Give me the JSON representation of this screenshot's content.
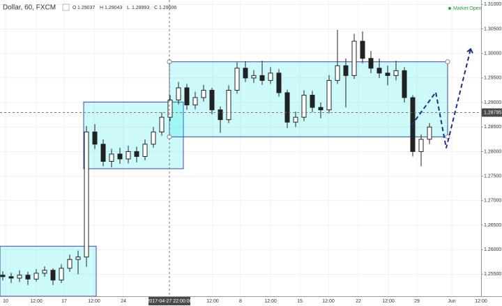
{
  "header": {
    "symbol": "Dollar, 60, FXCM",
    "ohlc_labels": [
      "O",
      "H",
      "L",
      "C"
    ],
    "ohlc_values": [
      "1.29037",
      "1.29043",
      "1.28993",
      "1.29006"
    ],
    "status": "Market Open"
  },
  "chart_data": {
    "type": "candlestick",
    "x": [
      1,
      4,
      7,
      10,
      13,
      16,
      19,
      22,
      25,
      28,
      31,
      34,
      37,
      40,
      43,
      46,
      49,
      52,
      55,
      58,
      61,
      64,
      67,
      70,
      73,
      76,
      79,
      82,
      85,
      88,
      91,
      94,
      97,
      100,
      103,
      106,
      109,
      112,
      115,
      118,
      121,
      124,
      127,
      130,
      133,
      136,
      139,
      142,
      145,
      148,
      151,
      154
    ],
    "open": [
      1.2548,
      1.2545,
      1.2542,
      1.2548,
      1.254,
      1.2552,
      1.2558,
      1.2538,
      1.2562,
      1.258,
      1.2585,
      1.284,
      1.2815,
      1.278,
      1.2795,
      1.2785,
      1.28,
      1.279,
      1.2815,
      1.284,
      1.287,
      1.2905,
      1.293,
      1.2895,
      1.291,
      1.2925,
      1.2885,
      1.2865,
      1.2925,
      1.297,
      1.295,
      1.2955,
      1.2945,
      1.296,
      1.292,
      1.286,
      1.287,
      1.2915,
      1.289,
      1.2885,
      1.2945,
      1.2975,
      1.2955,
      1.3025,
      1.299,
      1.297,
      1.296,
      1.2955,
      1.2965,
      1.291,
      1.28,
      1.2825
    ],
    "high": [
      1.2556,
      1.2553,
      1.2558,
      1.2555,
      1.256,
      1.2566,
      1.2562,
      1.257,
      1.259,
      1.2598,
      1.2852,
      1.2856,
      1.2825,
      1.2806,
      1.2808,
      1.2812,
      1.281,
      1.2825,
      1.285,
      1.288,
      1.2915,
      1.2942,
      1.2938,
      1.2922,
      1.2936,
      1.293,
      1.2892,
      1.2935,
      1.2982,
      1.2984,
      1.2966,
      1.2985,
      1.2972,
      1.2968,
      1.2926,
      1.2882,
      1.2925,
      1.2924,
      1.29,
      1.2956,
      1.3048,
      1.299,
      1.304,
      1.3045,
      1.3005,
      1.299,
      1.2975,
      1.2985,
      1.2972,
      1.2915,
      1.2835,
      1.2858
    ],
    "low": [
      1.2537,
      1.2532,
      1.2534,
      1.2528,
      1.2535,
      1.2545,
      1.2528,
      1.2532,
      1.2555,
      1.255,
      1.2565,
      1.2805,
      1.277,
      1.2768,
      1.2775,
      1.2776,
      1.2778,
      1.2782,
      1.2808,
      1.2832,
      1.2862,
      1.2896,
      1.2885,
      1.2886,
      1.2902,
      1.2876,
      1.2838,
      1.2858,
      1.2918,
      1.2942,
      1.294,
      1.2936,
      1.2938,
      1.2912,
      1.2848,
      1.285,
      1.2862,
      1.288,
      1.2868,
      1.2878,
      1.2938,
      1.289,
      1.2948,
      1.298,
      1.296,
      1.295,
      1.2935,
      1.2945,
      1.29,
      1.279,
      1.277,
      1.2815
    ],
    "close": [
      1.2545,
      1.2542,
      1.2548,
      1.254,
      1.2552,
      1.2558,
      1.2538,
      1.2562,
      1.258,
      1.2585,
      1.284,
      1.2815,
      1.278,
      1.2795,
      1.2785,
      1.28,
      1.279,
      1.2815,
      1.284,
      1.287,
      1.2905,
      1.293,
      1.2895,
      1.291,
      1.2925,
      1.2885,
      1.2865,
      1.2925,
      1.297,
      1.295,
      1.2955,
      1.2945,
      1.296,
      1.292,
      1.286,
      1.287,
      1.2915,
      1.289,
      1.2885,
      1.2945,
      1.2975,
      1.2955,
      1.3025,
      1.299,
      1.297,
      1.296,
      1.2955,
      1.2965,
      1.291,
      1.28,
      1.2825,
      1.285
    ],
    "zones": [
      {
        "x": [
          0,
          34.5
        ],
        "y": [
          1.2505,
          1.2607
        ]
      },
      {
        "x": [
          30,
          65.75
        ],
        "y": [
          1.2765,
          1.2901
        ]
      },
      {
        "x": [
          60.75,
          160.5
        ],
        "y": [
          1.283,
          1.2983
        ]
      }
    ],
    "forecast": {
      "x": [
        147.5,
        156.25,
        160,
        168.75
      ],
      "values": [
        1.2853,
        1.2921,
        1.2807,
        1.3009
      ]
    },
    "crosshair": {
      "x": {
        "value": 60.75,
        "label": "2017-04-27 22:00:00"
      },
      "y": 1.28795
    },
    "xlim": [
      0,
      172.5
    ],
    "ylim": [
      1.2505,
      1.3109
    ],
    "xticks": [
      {
        "value": 2,
        "label": "10"
      },
      {
        "value": 13,
        "label": "12:00"
      },
      {
        "value": 23,
        "label": "17"
      },
      {
        "value": 33.75,
        "label": "12:00"
      },
      {
        "value": 44.25,
        "label": "24"
      },
      {
        "value": 76.25,
        "label": "12:00"
      },
      {
        "value": 86.25,
        "label": "8"
      },
      {
        "value": 97,
        "label": "12:00"
      },
      {
        "value": 107.5,
        "label": "15"
      },
      {
        "value": 117.75,
        "label": "12:00"
      },
      {
        "value": 128.5,
        "label": "22"
      },
      {
        "value": 139.25,
        "label": "12:00"
      },
      {
        "value": 149.5,
        "label": "29"
      },
      {
        "value": 162,
        "label": "Jun"
      },
      {
        "value": 172.5,
        "label": "12:00"
      }
    ],
    "yticks": [
      {
        "value": 1.31,
        "label": "1.31000"
      },
      {
        "value": 1.305,
        "label": "1.30500"
      },
      {
        "value": 1.3,
        "label": "1.30000"
      },
      {
        "value": 1.295,
        "label": "1.29500"
      },
      {
        "value": 1.29,
        "label": "1.29000"
      },
      {
        "value": 1.285,
        "label": "1.28500"
      },
      {
        "value": 1.28,
        "label": "1.28000"
      },
      {
        "value": 1.275,
        "label": "1.27500"
      },
      {
        "value": 1.27,
        "label": "1.27000"
      },
      {
        "value": 1.265,
        "label": "1.26500"
      },
      {
        "value": 1.26,
        "label": "1.26000"
      },
      {
        "value": 1.255,
        "label": "1.25500"
      }
    ],
    "grid": true,
    "zone_color": "#3848a8",
    "forecast_color": "#1a2d8c",
    "candle_color": "#222222"
  }
}
